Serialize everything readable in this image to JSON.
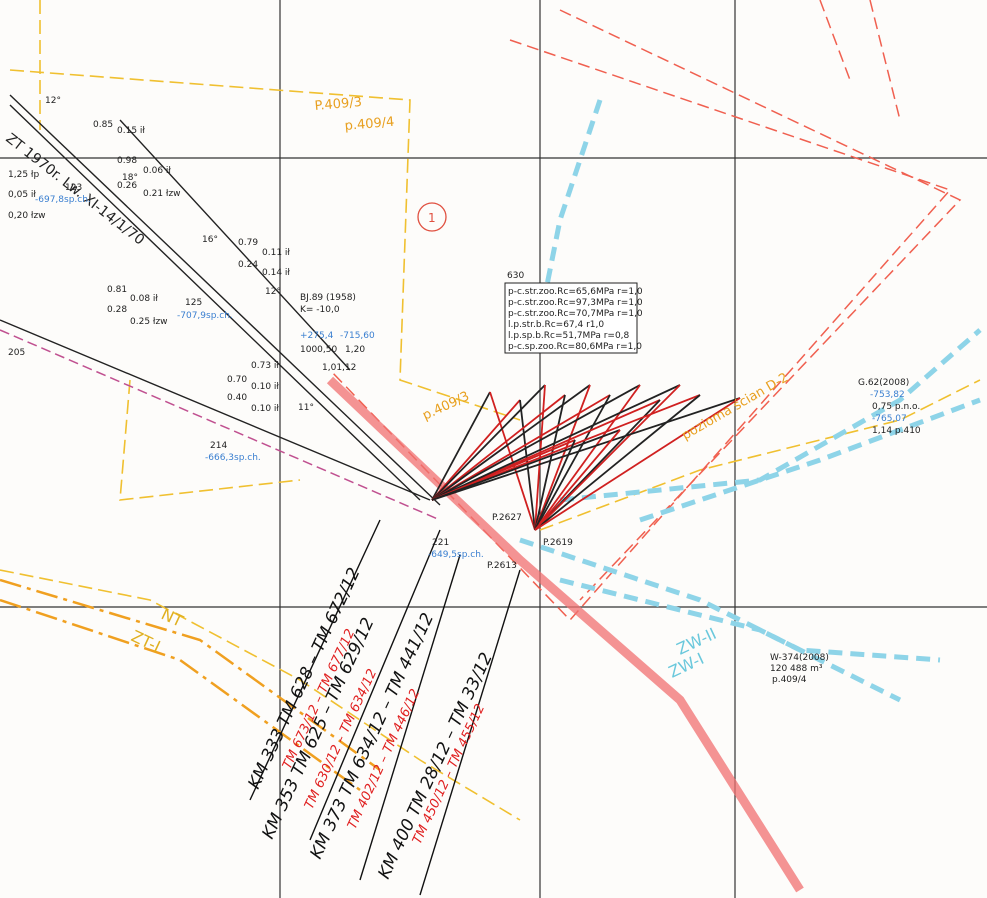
{
  "labels": [
    "P.409/3",
    "p.409/4",
    "1",
    "BJ.89 (1958)",
    "K= -10,0",
    "+275,4",
    "-715,60",
    "1000,50",
    "1,20",
    "1,01,12",
    "p.409/3",
    "630",
    "p-c.str.zoo.Rc=65,6MPa r=1,0",
    "p-c.str.zoo.Rc=97,3MPa r=1,0",
    "p-c.str.zoo.Rc=70,7MPa r=1,0",
    "l.p.str.b.Rc=67,4 r1,0",
    "l.p.sp.b.Rc=51,7MPa r=0,8",
    "p-c.sp.zoo.Rc=80,6MPa r=1,0",
    "G.62(2008)",
    "-753,82",
    "0,75 p.n.o.",
    "-765,07",
    "1,14 p.410",
    "W-374(2008)",
    "120 488 m³",
    "p.409/4",
    "ZW-II",
    "ZW-I",
    "NT",
    "ZT-I",
    "ZT 1970r. Lw. XI-14/1/70",
    "125",
    "-707,9sp.ch.",
    "123",
    "-697,8sp.ch.",
    "214",
    "-666,3sp.ch.",
    "205",
    "221",
    "-649,5sp.ch.",
    "P.2627",
    "P.2619",
    "P.2613",
    "0.85",
    "0.15 ił",
    "0.98",
    "0.26",
    "0.06 ił",
    "0.21 łzw",
    "0.79",
    "0.24",
    "0.11 ił",
    "0.14 ił",
    "0.81",
    "0.28",
    "0.08 ił",
    "0.25 łzw",
    "0.70",
    "0.40",
    "0.73 ił",
    "0.10 ił",
    "0.10 ił",
    "1,25 łp",
    "0,05 ił",
    "0,20 łzw",
    "12°",
    "16°",
    "18°",
    "12°",
    "11°",
    "pozioma ścian D-2",
    "KM 333 TM 628 – TM 672/12",
    "TM 673/12 – TM 677/12",
    "KM 353 TM 625 – TM 629/12",
    "TM 630/12 – TM 634/12",
    "KM 373 TM 634/12 – TM 441/12",
    "TM 402/12 – TM 446/12",
    "KM 400 TM 28/12 – TM 33/12",
    "TM 450/12 – TM 455/12"
  ]
}
